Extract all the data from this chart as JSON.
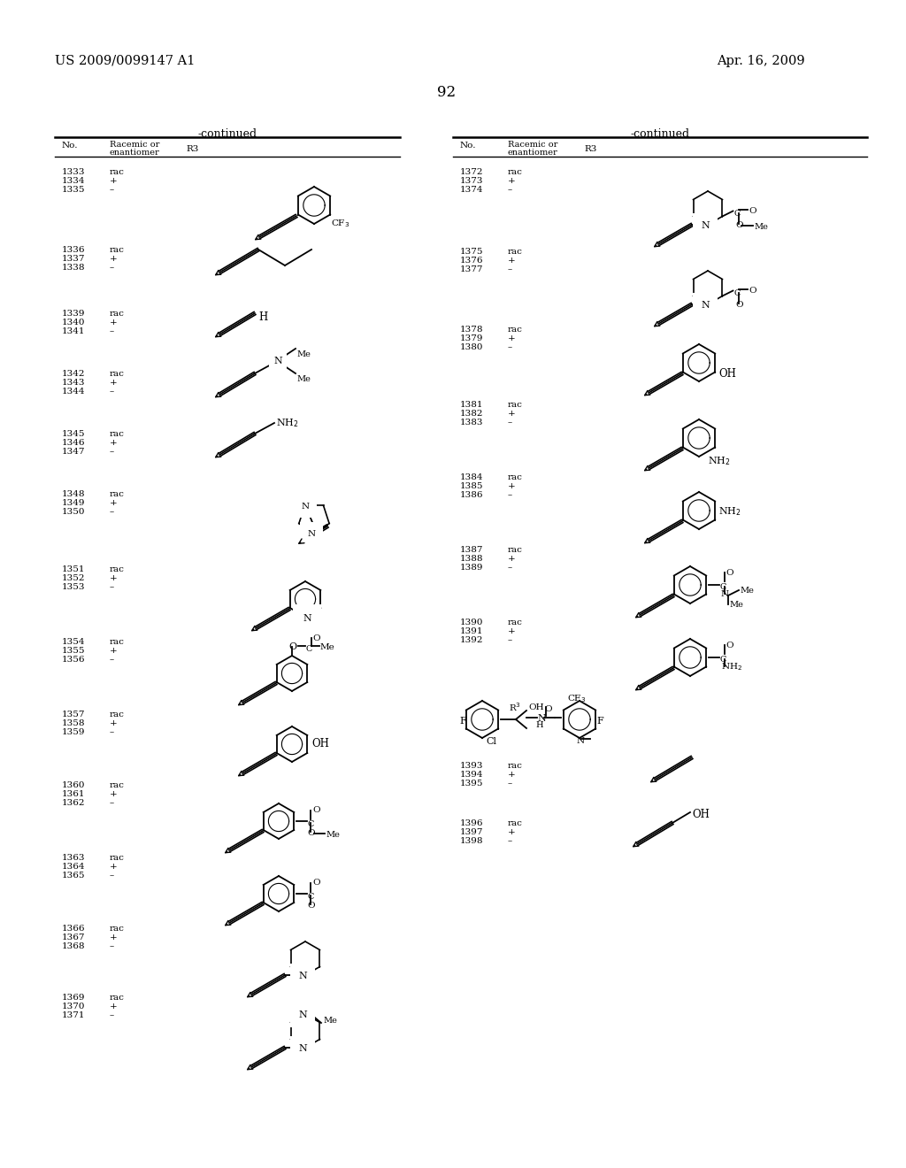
{
  "patent_number": "US 2009/0099147 A1",
  "date": "Apr. 16, 2009",
  "page_number": "92",
  "bg_color": "#ffffff"
}
